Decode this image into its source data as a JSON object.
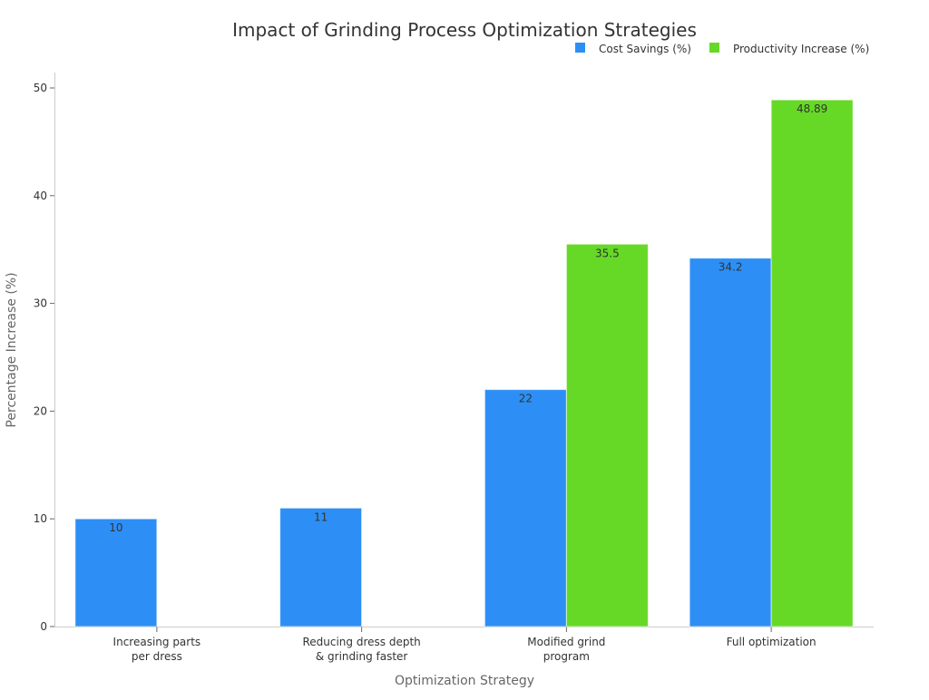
{
  "chart_data": {
    "type": "bar",
    "title": "Impact of Grinding Process Optimization Strategies",
    "xlabel": "Optimization Strategy",
    "ylabel": "Percentage Increase (%)",
    "ylim": [
      0,
      50
    ],
    "yticks": [
      0,
      10,
      20,
      30,
      40,
      50
    ],
    "grid": false,
    "legend_position": "top-right",
    "categories": [
      [
        "Increasing parts",
        "per dress"
      ],
      [
        "Reducing dress depth",
        "& grinding faster"
      ],
      [
        "Modified grind",
        "program"
      ],
      [
        "Full optimization"
      ]
    ],
    "series": [
      {
        "name": "Cost Savings (%)",
        "color": "#2d8ff5",
        "values": [
          10,
          11,
          22,
          34.2
        ],
        "labels": [
          "10",
          "11",
          "22",
          "34.2"
        ]
      },
      {
        "name": "Productivity Increase (%)",
        "color": "#66d926",
        "values": [
          null,
          null,
          35.5,
          48.89
        ],
        "labels": [
          "",
          "",
          "35.5",
          "48.89"
        ]
      }
    ]
  }
}
